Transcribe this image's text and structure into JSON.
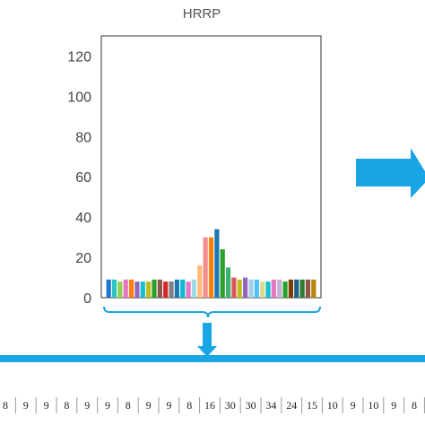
{
  "chart_data": {
    "type": "bar",
    "title": "HRRP",
    "xlabel": "",
    "ylabel": "",
    "ylim": [
      0,
      130
    ],
    "yticks": [
      0,
      20,
      40,
      60,
      80,
      100,
      120
    ],
    "grid": false,
    "values": [
      9,
      9,
      8,
      9,
      9,
      8,
      8,
      8,
      9,
      9,
      8,
      8,
      9,
      9,
      8,
      9,
      16,
      30,
      30,
      34,
      24,
      15,
      10,
      9,
      10,
      9,
      9,
      8,
      8,
      9,
      9,
      8,
      9,
      9,
      9,
      9,
      9
    ],
    "colors": [
      "#1f77d0",
      "#2ec4c4",
      "#8fd14f",
      "#e377c2",
      "#ff7f0e",
      "#9467bd",
      "#17becf",
      "#bcbd22",
      "#2ca02c",
      "#8c564b",
      "#d62728",
      "#7f7f7f",
      "#1f77b4",
      "#00bcd4",
      "#e377c2",
      "#9edae5",
      "#ffbb78",
      "#f28e8e",
      "#ff7f0e",
      "#1f77b4",
      "#2ca02c",
      "#3cb371",
      "#e15759",
      "#bcbd22",
      "#9467bd",
      "#a6cee3",
      "#4fc3f7",
      "#dbdb8d",
      "#17becf",
      "#e377c2",
      "#c5b0d5",
      "#2ca02c",
      "#7b3f00",
      "#1f5f8b",
      "#2e7d32",
      "#8c564b",
      "#b8860b"
    ],
    "sequence": [
      "8",
      "9",
      "9",
      "8",
      "9",
      "9",
      "8",
      "9",
      "9",
      "8",
      "16",
      "30",
      "30",
      "34",
      "24",
      "15",
      "10",
      "9",
      "10",
      "9",
      "8"
    ]
  },
  "colors": {
    "arrow": "#1aa6e4",
    "frame": "#333333"
  }
}
